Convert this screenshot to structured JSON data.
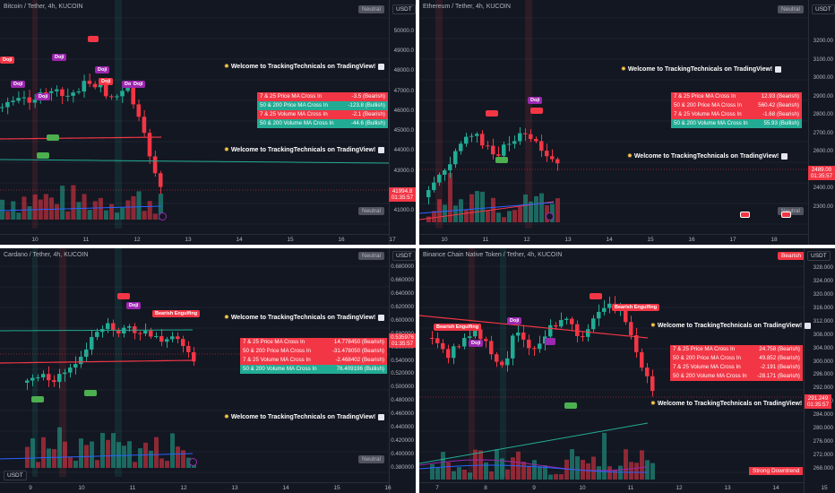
{
  "welcome_text": "Welcome to TrackingTechnicals on TradingView!",
  "colors": {
    "bear": "#f23645",
    "bull": "#22ab94",
    "doji": "#9c27b0",
    "bg": "#131722"
  },
  "panes": {
    "btc": {
      "title": "Bitcoin / Tether, 4h, KUCOIN",
      "status_top": "Neutral",
      "status_bottom": "Neutral",
      "currency": "USDT",
      "price": "41994.8",
      "countdown": "01:35:57",
      "y_labels": [
        "50000.0",
        "49000.0",
        "48000.0",
        "47000.0",
        "46000.0",
        "45000.0",
        "44000.0",
        "43000.0",
        "42000.0",
        "41000.0"
      ],
      "x_labels": [
        "10",
        "11",
        "12",
        "13",
        "14",
        "15",
        "16",
        "17"
      ],
      "table": [
        {
          "label": "7 & 25 Price MA Cross In",
          "value": "-3.5 (Bearish)",
          "type": "bear"
        },
        {
          "label": "50 & 200 Price MA Cross In",
          "value": "-123.8 (Bullish)",
          "type": "bull"
        },
        {
          "label": "7 & 25 Volume MA Cross In",
          "value": "-2.1 (Bearish)",
          "type": "bear"
        },
        {
          "label": "50 & 200 Volume MA Cross In",
          "value": "-44.6 (Bullish)",
          "type": "bull"
        }
      ],
      "patterns": [
        "Doji",
        "Doji",
        "Doji",
        "Doji",
        "Doji",
        "Doji",
        "Do",
        "Doji"
      ]
    },
    "eth": {
      "title": "Ethereum / Tether, 4h, KUCOIN",
      "status_top": "Neutral",
      "status_bottom": "Neutral",
      "currency": "USDT",
      "price": "2489.00",
      "countdown": "01:35:57",
      "y_labels": [
        "3200.00",
        "3100.00",
        "3000.00",
        "2900.00",
        "2800.00",
        "2700.00",
        "2600.00",
        "2500.00",
        "2400.00",
        "2300.00"
      ],
      "x_labels": [
        "10",
        "11",
        "12",
        "13",
        "14",
        "15",
        "16",
        "17",
        "18"
      ],
      "table": [
        {
          "label": "7 & 25 Price MA Cross In",
          "value": "12.93 (Bearish)",
          "type": "bear"
        },
        {
          "label": "50 & 200 Price MA Cross In",
          "value": "560.42 (Bearish)",
          "type": "bear"
        },
        {
          "label": "7 & 25 Volume MA Cross In",
          "value": "-1.68 (Bearish)",
          "type": "bear"
        },
        {
          "label": "50 & 200 Volume MA Cross In",
          "value": "55.93 (Bullish)",
          "type": "bull"
        }
      ],
      "patterns": [
        "Doji"
      ]
    },
    "ada": {
      "title": "Cardano / Tether, 4h, KUCOIN",
      "status_top": "Neutral",
      "status_bottom": "Neutral",
      "currency": "USDT",
      "price": "0.535976",
      "countdown": "01:35:57",
      "y_labels": [
        "0.680000",
        "0.660000",
        "0.640000",
        "0.620000",
        "0.600000",
        "0.580000",
        "0.560000",
        "0.540000",
        "0.520000",
        "0.500000",
        "0.480000",
        "0.460000",
        "0.440000",
        "0.420000",
        "0.400000",
        "0.380000"
      ],
      "x_labels": [
        "9",
        "10",
        "11",
        "12",
        "13",
        "14",
        "15",
        "16"
      ],
      "table": [
        {
          "label": "7 & 25 Price MA Cross In",
          "value": "14.778450 (Bearish)",
          "type": "bear"
        },
        {
          "label": "50 & 200 Price MA Cross In",
          "value": "-31.478050 (Bearish)",
          "type": "bear"
        },
        {
          "label": "7 & 25 Volume MA Cross In",
          "value": "-2.468402 (Bearish)",
          "type": "bear"
        },
        {
          "label": "50 & 200 Volume MA Cross In",
          "value": "76.409196 (Bullish)",
          "type": "bull"
        }
      ],
      "patterns": [
        "Doji",
        "Bearish Engulfing"
      ]
    },
    "bnb": {
      "title": "Binance Chain Native Token / Tether, 4h, KUCOIN",
      "status_top": "Bearish",
      "status_bottom": "Strong Downtrend",
      "currency": "USDT",
      "price": "291.249",
      "countdown": "01:35:57",
      "y_labels": [
        "328.000",
        "324.000",
        "320.000",
        "316.000",
        "312.000",
        "308.000",
        "304.000",
        "300.000",
        "296.000",
        "292.000",
        "288.000",
        "284.000",
        "280.000",
        "276.000",
        "272.000",
        "268.000"
      ],
      "x_labels": [
        "7",
        "8",
        "9",
        "10",
        "11",
        "12",
        "13",
        "14",
        "15",
        "16"
      ],
      "table": [
        {
          "label": "7 & 25 Price MA Cross In",
          "value": "24.758 (Bearish)",
          "type": "bear"
        },
        {
          "label": "50 & 200 Price MA Cross In",
          "value": "49.852 (Bearish)",
          "type": "bear"
        },
        {
          "label": "7 & 25 Volume MA Cross In",
          "value": "-2.191 (Bearish)",
          "type": "bear"
        },
        {
          "label": "50 & 200 Volume MA Cross In",
          "value": "-28.171 (Bearish)",
          "type": "bear"
        }
      ],
      "patterns": [
        "Bearish Engulfing",
        "Doji",
        "Doji",
        "Bearish Engulfing"
      ]
    }
  }
}
